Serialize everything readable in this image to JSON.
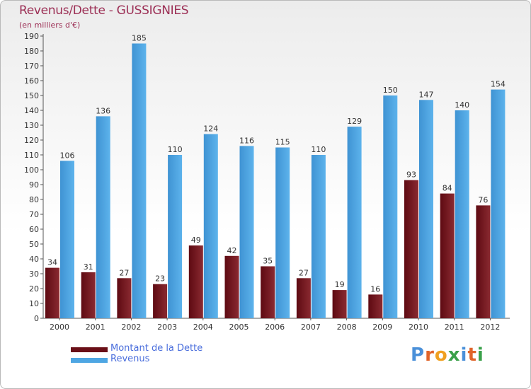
{
  "title": "Revenus/Dette - GUSSIGNIES",
  "subtitle": "(en milliers d'€)",
  "logo": {
    "text": "Proxiti"
  },
  "colors": {
    "debt": "#7a1f26",
    "revenue": "#4ea6e3",
    "title": "#9c2f55",
    "legend_text": "#4a6edc"
  },
  "chart_data": {
    "type": "bar",
    "title": "Revenus/Dette - GUSSIGNIES",
    "ylabel": "(en milliers d'€)",
    "xlabel": "",
    "categories": [
      "2000",
      "2001",
      "2002",
      "2003",
      "2004",
      "2005",
      "2006",
      "2007",
      "2008",
      "2009",
      "2010",
      "2011",
      "2012"
    ],
    "series": [
      {
        "name": "Montant de la Dette",
        "values": [
          34,
          31,
          27,
          23,
          49,
          42,
          35,
          27,
          19,
          16,
          93,
          84,
          76
        ]
      },
      {
        "name": "Revenus",
        "values": [
          106,
          136,
          185,
          110,
          124,
          116,
          115,
          110,
          129,
          150,
          147,
          140,
          154
        ]
      }
    ],
    "ylim": [
      0,
      190
    ],
    "yticks": [
      0,
      10,
      20,
      30,
      40,
      50,
      60,
      70,
      80,
      90,
      100,
      110,
      120,
      130,
      140,
      150,
      160,
      170,
      180,
      190
    ],
    "grid": false,
    "legend": "bottom-left"
  }
}
